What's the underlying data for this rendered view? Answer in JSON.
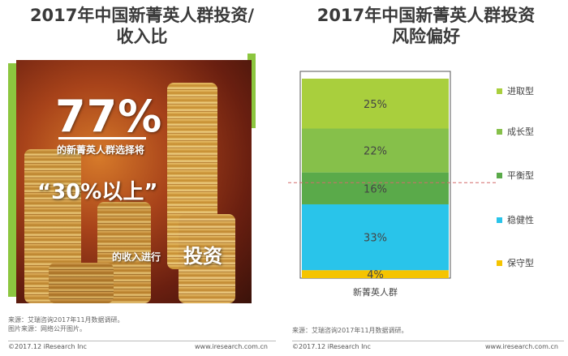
{
  "left": {
    "title_line1": "2017年中国新菁英人群投资/",
    "title_line2": "收入比",
    "big_percent": "77%",
    "text_line1": "的新菁英人群选择将",
    "text_line2": "“30%以上”",
    "text_line3a": "的收入进行",
    "text_line3b": "投资",
    "source_line1": "来源：艾瑞咨询2017年11月数据调研。",
    "source_line2": "图片来源：网络公开图片。",
    "footer_left": "©2017.12 iResearch Inc",
    "footer_right": "www.iresearch.com.cn"
  },
  "right": {
    "title_line1": "2017年中国新菁英人群投资",
    "title_line2": "风险偏好",
    "source": "来源：艾瑞咨询2017年11月数据调研。",
    "footer_left": "©2017.12 iResearch Inc",
    "footer_right": "www.iresearch.com.cn"
  },
  "colors": {
    "green_accent": "#8cc63f",
    "seg_aggressive": "#a9cf3d",
    "seg_growth": "#86c04a",
    "seg_balanced": "#5aaa4a",
    "seg_stable": "#29c4ea",
    "seg_conservative": "#f5c400"
  },
  "chart_data": {
    "type": "bar",
    "stacked": true,
    "categories": [
      "新菁英人群"
    ],
    "series": [
      {
        "name": "保守型",
        "values": [
          4
        ],
        "label": "4%",
        "color": "#f5c400"
      },
      {
        "name": "稳健性",
        "values": [
          33
        ],
        "label": "33%",
        "color": "#29c4ea"
      },
      {
        "name": "平衡型",
        "values": [
          16
        ],
        "label": "16%",
        "color": "#5aaa4a"
      },
      {
        "name": "成长型",
        "values": [
          22
        ],
        "label": "22%",
        "color": "#86c04a"
      },
      {
        "name": "进取型",
        "values": [
          25
        ],
        "label": "25%",
        "color": "#a9cf3d"
      }
    ],
    "ylim": [
      0,
      100
    ],
    "legend_position": "right",
    "grid": false,
    "reference_line": "dashed"
  }
}
